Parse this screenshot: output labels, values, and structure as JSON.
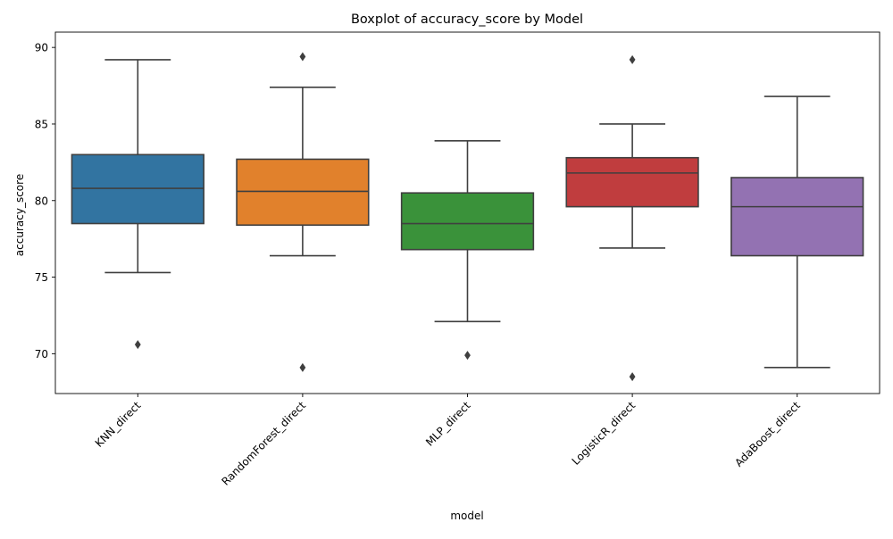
{
  "chart_data": {
    "type": "box",
    "title": "Boxplot of accuracy_score by Model",
    "xlabel": "model",
    "ylabel": "accuracy_score",
    "ylim": [
      67.4,
      91.0
    ],
    "yticks": [
      70,
      75,
      80,
      85,
      90
    ],
    "grid": false,
    "legend": "none",
    "categories": [
      "KNN_direct",
      "RandomForest_direct",
      "MLP_direct",
      "LogisticR_direct",
      "AdaBoost_direct"
    ],
    "series": [
      {
        "colors": [
          "#3274a1",
          "#e1812c",
          "#3a923a",
          "#c03d3e",
          "#9372b2"
        ]
      }
    ],
    "boxes": [
      {
        "category": "KNN_direct",
        "whisker_low": 75.3,
        "q1": 78.5,
        "median": 80.8,
        "q3": 83.0,
        "whisker_high": 89.2,
        "outliers": [
          70.6
        ]
      },
      {
        "category": "RandomForest_direct",
        "whisker_low": 76.4,
        "q1": 78.4,
        "median": 80.6,
        "q3": 82.7,
        "whisker_high": 87.4,
        "outliers": [
          89.4,
          69.1
        ]
      },
      {
        "category": "MLP_direct",
        "whisker_low": 72.1,
        "q1": 76.8,
        "median": 78.5,
        "q3": 80.5,
        "whisker_high": 83.9,
        "outliers": [
          69.9
        ]
      },
      {
        "category": "LogisticR_direct",
        "whisker_low": 76.9,
        "q1": 79.6,
        "median": 81.8,
        "q3": 82.8,
        "whisker_high": 85.0,
        "outliers": [
          89.2,
          68.5
        ]
      },
      {
        "category": "AdaBoost_direct",
        "whisker_low": 69.1,
        "q1": 76.4,
        "median": 79.6,
        "q3": 81.5,
        "whisker_high": 86.8,
        "outliers": []
      }
    ]
  }
}
